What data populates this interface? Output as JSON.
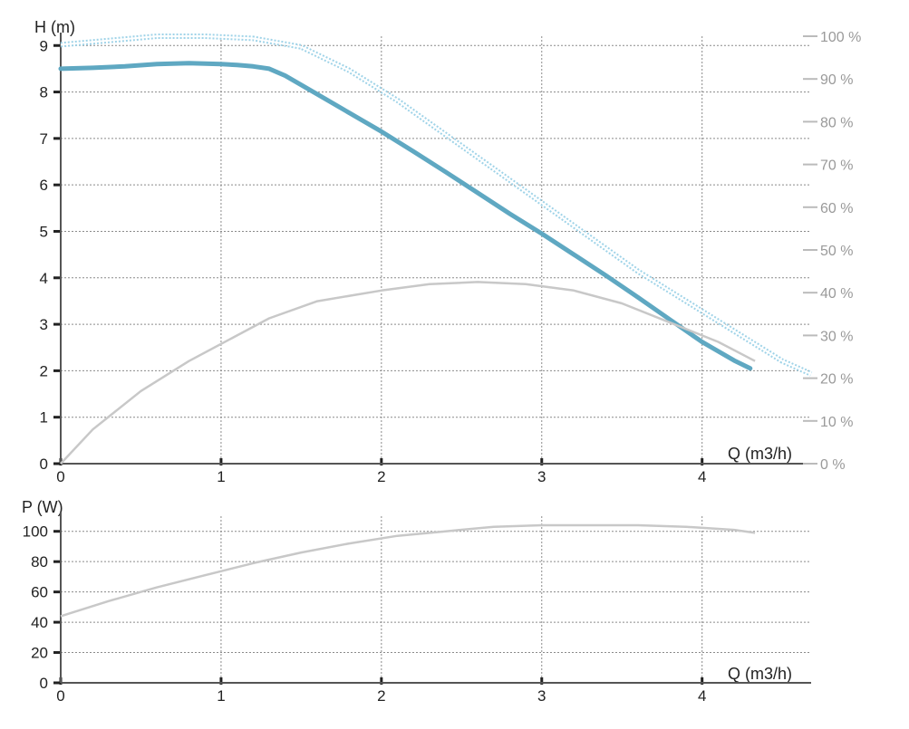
{
  "chart_data": [
    {
      "type": "line",
      "ylabel": "H (m)",
      "xlabel": "Q (m3/h)",
      "xlim": [
        0,
        4.68
      ],
      "ylim": [
        0,
        9.2
      ],
      "x_ticks": [
        "0",
        "1",
        "2",
        "3",
        "4"
      ],
      "y_ticks": [
        "0",
        "1",
        "2",
        "3",
        "4",
        "5",
        "6",
        "7",
        "8",
        "9"
      ],
      "y2lim": [
        0,
        100
      ],
      "y2_ticks": [
        "0 %",
        "10 %",
        "20 %",
        "30 %",
        "40 %",
        "50 %",
        "60 %",
        "70 %",
        "80 %",
        "90 %",
        "100 %"
      ],
      "grid": true,
      "series": [
        {
          "color": "#5fa8c2",
          "axis": "left",
          "style": "thick-solid",
          "x": [
            0,
            0.2,
            0.4,
            0.6,
            0.8,
            1.0,
            1.1,
            1.2,
            1.3,
            1.4,
            1.6,
            1.8,
            2.0,
            2.2,
            2.4,
            2.6,
            2.8,
            3.0,
            3.2,
            3.4,
            3.6,
            3.8,
            4.0,
            4.2,
            4.3
          ],
          "y": [
            8.5,
            8.52,
            8.55,
            8.6,
            8.62,
            8.6,
            8.58,
            8.55,
            8.5,
            8.35,
            7.95,
            7.55,
            7.15,
            6.72,
            6.28,
            5.83,
            5.38,
            4.95,
            4.5,
            4.05,
            3.58,
            3.1,
            2.62,
            2.22,
            2.05
          ]
        },
        {
          "color": "#9fd3e8",
          "axis": "right",
          "style": "dotted-double",
          "x": [
            0,
            0.3,
            0.6,
            0.9,
            1.2,
            1.5,
            1.8,
            2.1,
            2.4,
            2.7,
            3.0,
            3.3,
            3.6,
            3.9,
            4.2,
            4.5,
            4.68
          ],
          "y": [
            98,
            99,
            100,
            100,
            99.5,
            97.5,
            92,
            85,
            77,
            69,
            61,
            53,
            45,
            38,
            31,
            24,
            21
          ]
        },
        {
          "color": "#c8c8c8",
          "axis": "right",
          "style": "solid",
          "x": [
            0,
            0.2,
            0.5,
            0.8,
            1.0,
            1.3,
            1.6,
            2.0,
            2.3,
            2.6,
            2.9,
            3.2,
            3.5,
            3.8,
            4.1,
            4.33
          ],
          "y": [
            0,
            8,
            17,
            24,
            28,
            34,
            38,
            40.5,
            42,
            42.5,
            42,
            40.5,
            37.5,
            33,
            28.5,
            24
          ]
        }
      ]
    },
    {
      "type": "line",
      "ylabel": "P (W)",
      "xlabel": "Q (m3/h)",
      "xlim": [
        0,
        4.68
      ],
      "ylim": [
        0,
        110
      ],
      "x_ticks": [
        "0",
        "1",
        "2",
        "3",
        "4"
      ],
      "y_ticks": [
        "0",
        "20",
        "40",
        "60",
        "80",
        "100"
      ],
      "grid": true,
      "series": [
        {
          "color": "#c8c8c8",
          "style": "solid",
          "x": [
            0,
            0.3,
            0.6,
            0.9,
            1.2,
            1.5,
            1.8,
            2.1,
            2.4,
            2.7,
            3.0,
            3.3,
            3.6,
            3.9,
            4.2,
            4.33
          ],
          "y": [
            44,
            54,
            63,
            71,
            79,
            86,
            92,
            97,
            100,
            103,
            104,
            104,
            104,
            103,
            101,
            99
          ]
        }
      ]
    }
  ]
}
